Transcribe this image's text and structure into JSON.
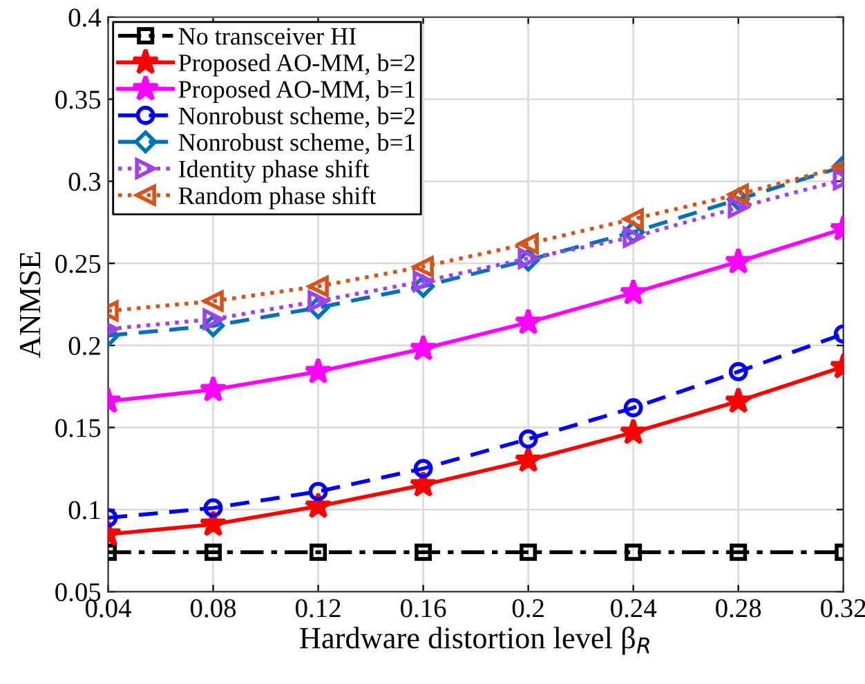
{
  "chart_data": {
    "type": "line",
    "xlabel": "Hardware distortion level β$_{R}$",
    "ylabel": "ANMSE",
    "x": [
      0.04,
      0.08,
      0.12,
      0.16,
      0.2,
      0.24,
      0.28,
      0.32
    ],
    "xlim": [
      0.04,
      0.32
    ],
    "xticks": [
      0.04,
      0.08,
      0.12,
      0.16,
      0.2,
      0.24,
      0.28,
      0.32
    ],
    "ylim": [
      0.05,
      0.4
    ],
    "yticks": [
      0.05,
      0.1,
      0.15,
      0.2,
      0.25,
      0.3,
      0.35,
      0.4
    ],
    "grid": true,
    "legend": "top left",
    "series": [
      {
        "name": "No transceiver HI",
        "color": "#000000",
        "marker": "square",
        "line_style": "dashdot",
        "values": [
          0.074,
          0.074,
          0.074,
          0.074,
          0.074,
          0.074,
          0.074,
          0.074
        ]
      },
      {
        "name": "Proposed AO-MM, b=2",
        "color": "#ff0000",
        "marker": "star",
        "line_style": "solid",
        "values": [
          0.085,
          0.091,
          0.102,
          0.115,
          0.13,
          0.147,
          0.166,
          0.187
        ]
      },
      {
        "name": "Proposed AO-MM, b=1",
        "color": "#ff00ff",
        "marker": "star",
        "line_style": "solid",
        "values": [
          0.166,
          0.173,
          0.184,
          0.198,
          0.214,
          0.232,
          0.251,
          0.271
        ]
      },
      {
        "name": "Nonrobust scheme, b=2",
        "color": "#0000ff",
        "marker": "circle",
        "line_style": "dashed",
        "values": [
          0.095,
          0.101,
          0.111,
          0.125,
          0.143,
          0.162,
          0.184,
          0.207
        ]
      },
      {
        "name": "Nonrobust scheme, b=1",
        "color": "#0072bd",
        "marker": "diamond",
        "line_style": "dashed",
        "values": [
          0.206,
          0.212,
          0.223,
          0.236,
          0.252,
          0.269,
          0.289,
          0.309
        ]
      },
      {
        "name": "Identity phase shift",
        "color": "#a040f0",
        "marker": "triangle-right",
        "line_style": "dotted",
        "values": [
          0.21,
          0.216,
          0.227,
          0.239,
          0.253,
          0.266,
          0.284,
          0.301
        ]
      },
      {
        "name": "Random phase shift",
        "color": "#d95319",
        "marker": "triangle-left",
        "line_style": "dotted",
        "values": [
          0.221,
          0.227,
          0.236,
          0.248,
          0.262,
          0.277,
          0.292,
          0.309
        ]
      }
    ]
  }
}
